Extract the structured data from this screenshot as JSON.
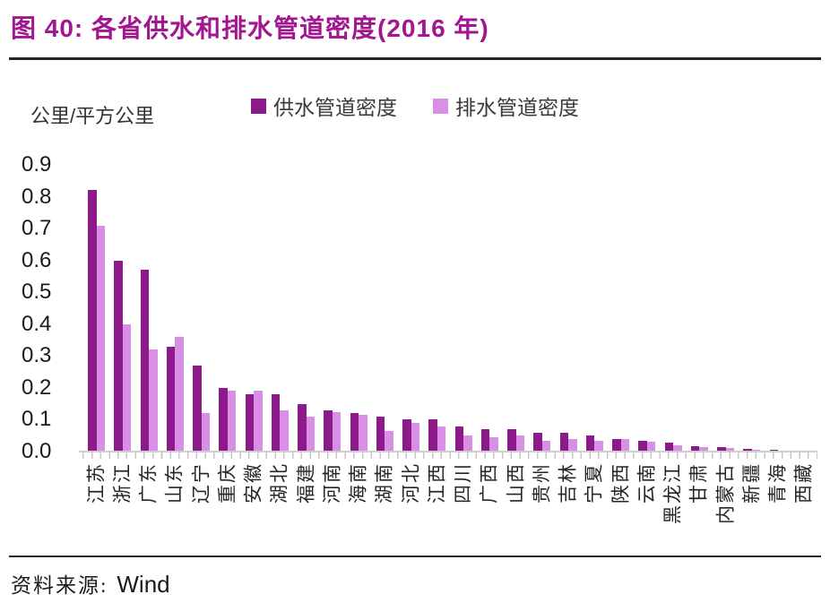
{
  "header": {
    "title": "图 40: 各省供水和排水管道密度(2016 年)"
  },
  "footer": {
    "source_label": "资料来源:",
    "source_value": "Wind"
  },
  "colors": {
    "title": "#A2168F",
    "supply_bar": "#8C1A8A",
    "drainage_bar": "#DA8FE6",
    "axis_line": "#CFCFCF",
    "text": "#262626"
  },
  "chart_data": {
    "type": "bar",
    "title": "各省供水和排水管道密度(2016 年)",
    "unit_label": "公里/平方公里",
    "xlabel": "",
    "ylabel": "公里/平方公里",
    "ylim": [
      0,
      0.9
    ],
    "yticks": [
      0.9,
      0.8,
      0.7,
      0.6,
      0.5,
      0.4,
      0.3,
      0.2,
      0.1,
      0.0
    ],
    "grid": false,
    "legend_position": "top",
    "categories": [
      "江苏",
      "浙江",
      "广东",
      "山东",
      "辽宁",
      "重庆",
      "安徽",
      "湖北",
      "福建",
      "河南",
      "海南",
      "湖南",
      "河北",
      "江西",
      "四川",
      "广西",
      "山西",
      "贵州",
      "吉林",
      "宁夏",
      "陕西",
      "云南",
      "黑龙江",
      "甘肃",
      "内蒙古",
      "新疆",
      "青海",
      "西藏"
    ],
    "series": [
      {
        "name": "供水管道密度",
        "color": "#8C1A8A",
        "values": [
          0.82,
          0.6,
          0.57,
          0.33,
          0.27,
          0.2,
          0.18,
          0.18,
          0.15,
          0.13,
          0.12,
          0.11,
          0.1,
          0.1,
          0.08,
          0.07,
          0.07,
          0.06,
          0.06,
          0.05,
          0.04,
          0.033,
          0.028,
          0.016,
          0.013,
          0.008,
          0.005,
          0.003
        ]
      },
      {
        "name": "排水管道密度",
        "color": "#DA8FE6",
        "values": [
          0.71,
          0.4,
          0.32,
          0.36,
          0.12,
          0.19,
          0.19,
          0.13,
          0.11,
          0.125,
          0.115,
          0.065,
          0.09,
          0.08,
          0.05,
          0.045,
          0.05,
          0.033,
          0.04,
          0.035,
          0.04,
          0.03,
          0.02,
          0.014,
          0.01,
          0.007,
          0.004,
          0.002
        ]
      }
    ]
  }
}
